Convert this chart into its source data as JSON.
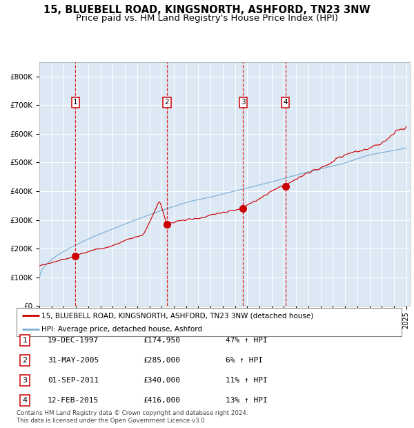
{
  "title1": "15, BLUEBELL ROAD, KINGSNORTH, ASHFORD, TN23 3NW",
  "title2": "Price paid vs. HM Land Registry's House Price Index (HPI)",
  "ylim": [
    0,
    850000
  ],
  "yticks": [
    0,
    100000,
    200000,
    300000,
    400000,
    500000,
    600000,
    700000,
    800000
  ],
  "ytick_labels": [
    "£0",
    "£100K",
    "£200K",
    "£300K",
    "£400K",
    "£500K",
    "£600K",
    "£700K",
    "£800K"
  ],
  "background_color": "#dce9f5",
  "grid_color": "#ffffff",
  "year_start": 1995,
  "year_end": 2025,
  "sale_dates": [
    1997.96,
    2005.42,
    2011.67,
    2015.12
  ],
  "sale_prices": [
    174950,
    285000,
    340000,
    416000
  ],
  "sale_labels": [
    "1",
    "2",
    "3",
    "4"
  ],
  "red_line_color": "#cc0000",
  "blue_line_color": "#7bafd4",
  "marker_color": "#cc0000",
  "dashed_line_color": "#dd0000",
  "legend_entries": [
    "15, BLUEBELL ROAD, KINGSNORTH, ASHFORD, TN23 3NW (detached house)",
    "HPI: Average price, detached house, Ashford"
  ],
  "table_rows": [
    [
      "1",
      "19-DEC-1997",
      "£174,950",
      "47% ↑ HPI"
    ],
    [
      "2",
      "31-MAY-2005",
      "£285,000",
      "6% ↑ HPI"
    ],
    [
      "3",
      "01-SEP-2011",
      "£340,000",
      "11% ↑ HPI"
    ],
    [
      "4",
      "12-FEB-2015",
      "£416,000",
      "13% ↑ HPI"
    ]
  ],
  "footer_text": "Contains HM Land Registry data © Crown copyright and database right 2024.\nThis data is licensed under the Open Government Licence v3.0.",
  "title_fontsize": 10.5,
  "subtitle_fontsize": 9.5
}
